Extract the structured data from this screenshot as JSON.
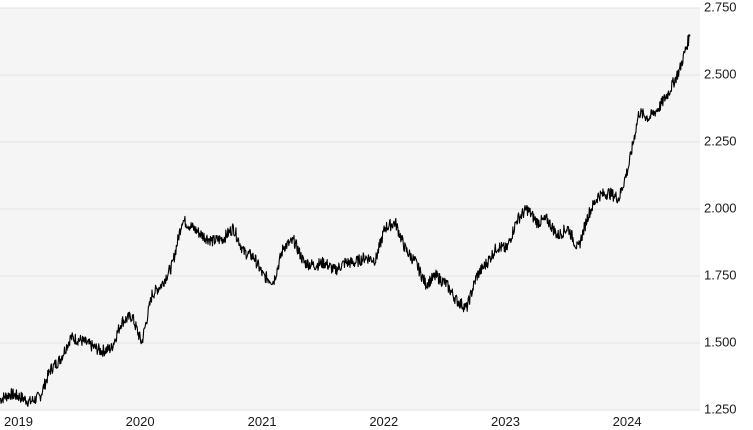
{
  "chart_data": {
    "type": "line",
    "title": "",
    "xlabel": "",
    "ylabel": "",
    "x_ticks": [
      "2019",
      "2020",
      "2021",
      "2022",
      "2023",
      "2024"
    ],
    "y_ticks": [
      "1.250",
      "1.500",
      "1.750",
      "2.000",
      "2.250",
      "2.500",
      "2.750"
    ],
    "ylim": [
      1.25,
      2.75
    ],
    "xlim": [
      "2019-01-01",
      "2024-10-01"
    ],
    "grid": "horizontal",
    "colors": {
      "plot_bg": "#f5f5f5",
      "line": "#000000",
      "grid": "#e3e3e3"
    },
    "series": [
      {
        "x": [
          "2019-01-01",
          "2019-02-01",
          "2019-03-01",
          "2019-04-01",
          "2019-05-01",
          "2019-06-01",
          "2019-07-01",
          "2019-08-01",
          "2019-09-01",
          "2019-10-01",
          "2019-11-01",
          "2019-12-01",
          "2020-01-01",
          "2020-02-01",
          "2020-03-01",
          "2020-04-01",
          "2020-05-01",
          "2020-06-01",
          "2020-07-01",
          "2020-08-01",
          "2020-09-01",
          "2020-10-01",
          "2020-11-01",
          "2020-12-01",
          "2021-01-01",
          "2021-02-01",
          "2021-03-01",
          "2021-04-01",
          "2021-05-01",
          "2021-06-01",
          "2021-07-01",
          "2021-08-01",
          "2021-09-01",
          "2021-10-01",
          "2021-11-01",
          "2021-12-01",
          "2022-01-01",
          "2022-02-01",
          "2022-03-01",
          "2022-04-01",
          "2022-05-01",
          "2022-06-01",
          "2022-07-01",
          "2022-08-01",
          "2022-09-01",
          "2022-10-01",
          "2022-11-01",
          "2022-12-01",
          "2023-01-01",
          "2023-02-01",
          "2023-03-01",
          "2023-04-01",
          "2023-05-01",
          "2023-06-01",
          "2023-07-01",
          "2023-08-01",
          "2023-09-01",
          "2023-10-01",
          "2023-11-01",
          "2023-12-01",
          "2024-01-01",
          "2024-02-01",
          "2024-03-01",
          "2024-04-01",
          "2024-05-01",
          "2024-06-01",
          "2024-07-01",
          "2024-08-01",
          "2024-09-01"
        ],
        "values": [
          1.29,
          1.31,
          1.3,
          1.28,
          1.3,
          1.4,
          1.44,
          1.52,
          1.51,
          1.49,
          1.47,
          1.48,
          1.58,
          1.6,
          1.5,
          1.68,
          1.72,
          1.79,
          1.96,
          1.93,
          1.9,
          1.88,
          1.89,
          1.93,
          1.84,
          1.82,
          1.75,
          1.73,
          1.86,
          1.88,
          1.8,
          1.79,
          1.8,
          1.77,
          1.8,
          1.8,
          1.82,
          1.81,
          1.93,
          1.95,
          1.85,
          1.8,
          1.72,
          1.75,
          1.72,
          1.66,
          1.63,
          1.75,
          1.8,
          1.86,
          1.85,
          1.96,
          2.0,
          1.95,
          1.96,
          1.9,
          1.93,
          1.85,
          1.98,
          2.05,
          2.06,
          2.04,
          2.16,
          2.36,
          2.34,
          2.38,
          2.44,
          2.52,
          2.65
        ]
      }
    ]
  }
}
